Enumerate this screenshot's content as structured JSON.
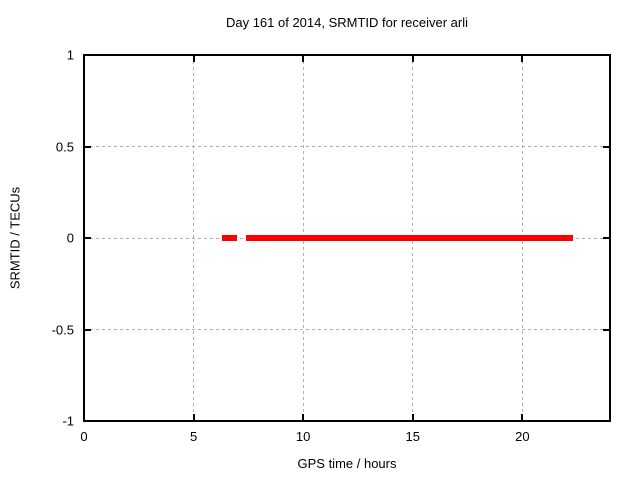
{
  "chart_data": {
    "type": "line",
    "title": "Day 161 of 2014, SRMTID for receiver arli",
    "xlabel": "GPS time / hours",
    "ylabel": "SRMTID / TECUs",
    "xlim": [
      0,
      24
    ],
    "ylim": [
      -1,
      1
    ],
    "xticks": [
      0,
      5,
      10,
      15,
      20
    ],
    "yticks": [
      -1,
      -0.5,
      0,
      0.5,
      1
    ],
    "grid": true,
    "legend": "none",
    "series": [
      {
        "name": "SRMTID",
        "color": "#ff0000",
        "y_constant": 0,
        "segments": [
          {
            "x_start": 6.3,
            "x_end": 7.0,
            "y": 0
          },
          {
            "x_start": 7.4,
            "x_end": 22.3,
            "y": 0
          }
        ]
      }
    ],
    "colors": {
      "background": "#ffffff",
      "border": "#000000",
      "grid": "#b0b0b0",
      "text": "#000000"
    }
  }
}
